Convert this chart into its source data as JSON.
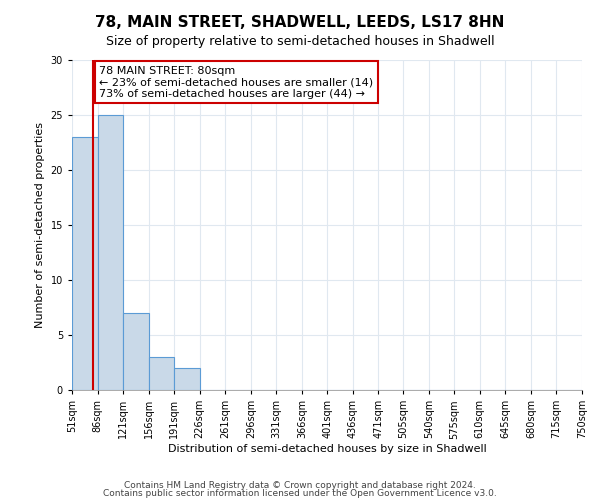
{
  "title": "78, MAIN STREET, SHADWELL, LEEDS, LS17 8HN",
  "subtitle": "Size of property relative to semi-detached houses in Shadwell",
  "xlabel": "Distribution of semi-detached houses by size in Shadwell",
  "ylabel": "Number of semi-detached properties",
  "bin_edges": [
    51,
    86,
    121,
    156,
    191,
    226,
    261,
    296,
    331,
    366,
    401,
    436,
    471,
    505,
    540,
    575,
    610,
    645,
    680,
    715,
    750
  ],
  "counts": [
    23,
    25,
    7,
    3,
    2,
    0,
    0,
    0,
    0,
    0,
    0,
    0,
    0,
    0,
    0,
    0,
    0,
    0,
    0,
    0
  ],
  "bar_color": "#c9d9e8",
  "bar_edge_color": "#5b9bd5",
  "property_size": 80,
  "property_line_color": "#cc0000",
  "annotation_text": "78 MAIN STREET: 80sqm\n← 23% of semi-detached houses are smaller (14)\n73% of semi-detached houses are larger (44) →",
  "annotation_box_color": "white",
  "annotation_box_edge_color": "#cc0000",
  "ylim": [
    0,
    30
  ],
  "yticks": [
    0,
    5,
    10,
    15,
    20,
    25,
    30
  ],
  "footer_line1": "Contains HM Land Registry data © Crown copyright and database right 2024.",
  "footer_line2": "Contains public sector information licensed under the Open Government Licence v3.0.",
  "background_color": "#ffffff",
  "grid_color": "#e0e8f0",
  "title_fontsize": 11,
  "subtitle_fontsize": 9,
  "axis_label_fontsize": 8,
  "tick_label_fontsize": 7,
  "footer_fontsize": 6.5,
  "annotation_fontsize": 8
}
